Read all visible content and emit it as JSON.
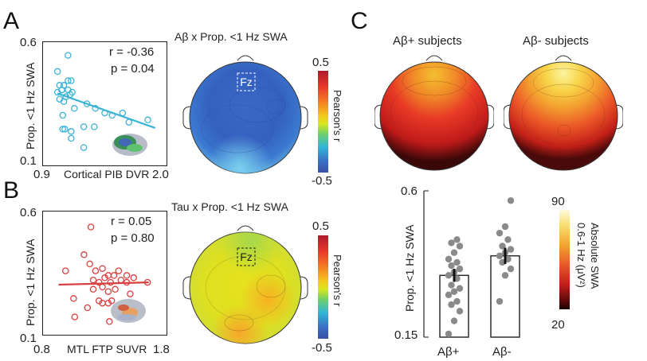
{
  "panels": {
    "A": {
      "letter": "A",
      "scatter": {
        "ylabel": "Prop. <1 Hz SWA",
        "ytick_top": "0.6",
        "ytick_bottom": "0.1",
        "xtick_left": "0.9",
        "xtick_right": "2.0",
        "xlabel": "Cortical PIB DVR",
        "r_text": "r = -0.36",
        "p_text": "p = 0.04",
        "color": "#3db3d6"
      },
      "topo": {
        "title": "Aβ x Prop. <1 Hz SWA",
        "electrode": "Fz",
        "cbar_max": "0.5",
        "cbar_min": "-0.5",
        "cbar_label": "Pearson's r"
      }
    },
    "B": {
      "letter": "B",
      "scatter": {
        "ylabel": "Prop. <1 Hz SWA",
        "ytick_top": "0.6",
        "ytick_bottom": "0.1",
        "xtick_left": "0.8",
        "xtick_right": "1.8",
        "xlabel": "MTL FTP SUVR",
        "r_text": "r = 0.05",
        "p_text": "p = 0.80",
        "color": "#d94040"
      },
      "topo": {
        "title": "Tau x Prop. <1 Hz SWA",
        "electrode": "Fz",
        "cbar_max": "0.5",
        "cbar_min": "-0.5",
        "cbar_label": "Pearson's r"
      }
    },
    "C": {
      "letter": "C",
      "topo_left_title": "Aβ+ subjects",
      "topo_right_title": "Aβ- subjects",
      "cbar_max": "90",
      "cbar_min": "20",
      "cbar_label_1": "Absolute SWA",
      "cbar_label_2": "0.6-1 Hz (μV²)"
    }
  },
  "chart_data": [
    {
      "type": "scatter",
      "panel": "A",
      "title": "",
      "xlabel": "Cortical PIB DVR",
      "ylabel": "Prop. <1 Hz SWA",
      "xlim": [
        0.9,
        2.0
      ],
      "ylim": [
        0.1,
        0.6
      ],
      "fit": {
        "x": [
          1.0,
          1.93
        ],
        "y": [
          0.395,
          0.245
        ]
      },
      "points": [
        {
          "x": 1.0,
          "y": 0.4
        },
        {
          "x": 1.02,
          "y": 0.43
        },
        {
          "x": 1.04,
          "y": 0.41
        },
        {
          "x": 1.06,
          "y": 0.43
        },
        {
          "x": 1.08,
          "y": 0.38
        },
        {
          "x": 1.1,
          "y": 0.41
        },
        {
          "x": 1.12,
          "y": 0.39
        },
        {
          "x": 1.14,
          "y": 0.4
        },
        {
          "x": 1.02,
          "y": 0.37
        },
        {
          "x": 1.06,
          "y": 0.36
        },
        {
          "x": 1.1,
          "y": 0.45
        },
        {
          "x": 1.13,
          "y": 0.45
        },
        {
          "x": 1.05,
          "y": 0.3
        },
        {
          "x": 1.16,
          "y": 0.33
        },
        {
          "x": 1.28,
          "y": 0.35
        },
        {
          "x": 1.36,
          "y": 0.33
        },
        {
          "x": 1.45,
          "y": 0.31
        },
        {
          "x": 1.52,
          "y": 0.3
        },
        {
          "x": 1.62,
          "y": 0.31
        },
        {
          "x": 1.68,
          "y": 0.27
        },
        {
          "x": 1.86,
          "y": 0.28
        },
        {
          "x": 1.05,
          "y": 0.24
        },
        {
          "x": 1.07,
          "y": 0.24
        },
        {
          "x": 1.13,
          "y": 0.23
        },
        {
          "x": 1.25,
          "y": 0.25
        },
        {
          "x": 1.35,
          "y": 0.25
        },
        {
          "x": 1.13,
          "y": 0.2
        },
        {
          "x": 1.25,
          "y": 0.16
        },
        {
          "x": 1.1,
          "y": 0.56
        },
        {
          "x": 1.0,
          "y": 0.49
        }
      ]
    },
    {
      "type": "scatter",
      "panel": "B",
      "title": "",
      "xlabel": "MTL FTP SUVR",
      "ylabel": "Prop. <1 Hz SWA",
      "xlim": [
        0.8,
        1.8
      ],
      "ylim": [
        0.1,
        0.6
      ],
      "fit": {
        "x": [
          0.9,
          1.68
        ],
        "y": [
          0.3,
          0.31
        ]
      },
      "points": [
        {
          "x": 1.18,
          "y": 0.55
        },
        {
          "x": 0.96,
          "y": 0.36
        },
        {
          "x": 1.12,
          "y": 0.43
        },
        {
          "x": 1.17,
          "y": 0.39
        },
        {
          "x": 1.22,
          "y": 0.36
        },
        {
          "x": 1.28,
          "y": 0.37
        },
        {
          "x": 1.33,
          "y": 0.34
        },
        {
          "x": 1.38,
          "y": 0.34
        },
        {
          "x": 1.42,
          "y": 0.36
        },
        {
          "x": 1.49,
          "y": 0.34
        },
        {
          "x": 1.2,
          "y": 0.32
        },
        {
          "x": 1.25,
          "y": 0.31
        },
        {
          "x": 1.3,
          "y": 0.33
        },
        {
          "x": 1.35,
          "y": 0.31
        },
        {
          "x": 1.44,
          "y": 0.32
        },
        {
          "x": 1.49,
          "y": 0.31
        },
        {
          "x": 1.55,
          "y": 0.33
        },
        {
          "x": 1.67,
          "y": 0.31
        },
        {
          "x": 1.2,
          "y": 0.28
        },
        {
          "x": 1.28,
          "y": 0.29
        },
        {
          "x": 1.33,
          "y": 0.27
        },
        {
          "x": 1.39,
          "y": 0.28
        },
        {
          "x": 1.52,
          "y": 0.26
        },
        {
          "x": 1.03,
          "y": 0.24
        },
        {
          "x": 1.25,
          "y": 0.23
        },
        {
          "x": 1.28,
          "y": 0.22
        },
        {
          "x": 1.33,
          "y": 0.22
        },
        {
          "x": 1.36,
          "y": 0.23
        },
        {
          "x": 1.15,
          "y": 0.2
        },
        {
          "x": 1.04,
          "y": 0.16
        },
        {
          "x": 1.34,
          "y": 0.14
        }
      ]
    },
    {
      "type": "bar",
      "panel": "C",
      "title": "",
      "xlabel": "",
      "ylabel": "Prop. <1 Hz SWA",
      "ylim": [
        0.15,
        0.6
      ],
      "categories": [
        "Aβ+",
        "Aβ-"
      ],
      "values": [
        0.34,
        0.4
      ],
      "errors": [
        0.02,
        0.025
      ],
      "points": [
        [
          0.16,
          0.2,
          0.23,
          0.25,
          0.26,
          0.28,
          0.29,
          0.3,
          0.31,
          0.33,
          0.34,
          0.35,
          0.36,
          0.37,
          0.38,
          0.39,
          0.41,
          0.43,
          0.44,
          0.45
        ],
        [
          0.26,
          0.34,
          0.36,
          0.38,
          0.39,
          0.4,
          0.41,
          0.42,
          0.43,
          0.45,
          0.47,
          0.49,
          0.57
        ]
      ]
    }
  ]
}
